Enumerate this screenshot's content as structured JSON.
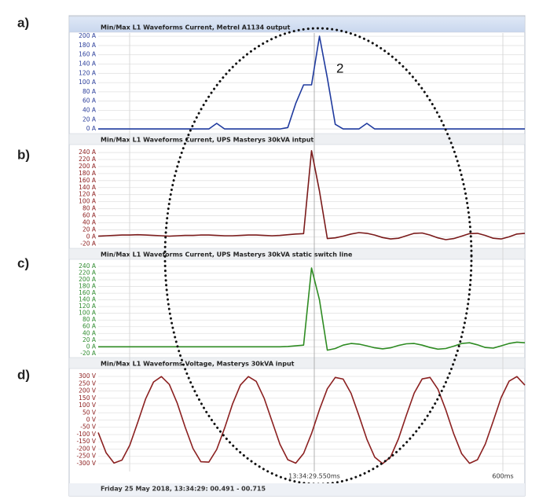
{
  "chart_data": [
    {
      "type": "line",
      "panel_label": "a)",
      "title": "Min/Max L1 Waveforms Current, Metrel A1134 output",
      "color": "#1f3a9e",
      "tick_color": "#2a3d9a",
      "annotations": [
        "2"
      ],
      "values": [
        0,
        0,
        0,
        0,
        0,
        0,
        0,
        0,
        0,
        0,
        0,
        0,
        0,
        0,
        0,
        12,
        0,
        0,
        0,
        0,
        0,
        0,
        0,
        0,
        3,
        55,
        95,
        95,
        200,
        110,
        10,
        0,
        0,
        0,
        12,
        0,
        0,
        0,
        0,
        0,
        0,
        0,
        0,
        0,
        0,
        0,
        0,
        0,
        0,
        0,
        0,
        0,
        0,
        0,
        0
      ],
      "ylim": [
        -5,
        207
      ],
      "yticks": [
        {
          "value": 0,
          "label": "0 A"
        },
        {
          "value": 20,
          "label": "20 A"
        },
        {
          "value": 40,
          "label": "40 A"
        },
        {
          "value": 60,
          "label": "60 A"
        },
        {
          "value": 80,
          "label": "80 A"
        },
        {
          "value": 100,
          "label": "100 A"
        },
        {
          "value": 120,
          "label": "120 A"
        },
        {
          "value": 140,
          "label": "140 A"
        },
        {
          "value": 160,
          "label": "160 A"
        },
        {
          "value": 180,
          "label": "180 A"
        },
        {
          "value": 200,
          "label": "200 A"
        }
      ],
      "grid": true
    },
    {
      "type": "line",
      "panel_label": "b)",
      "title": "Min/Max L1 Waveforms Current, UPS Masterys 30kVA intput",
      "color": "#7a1a1a",
      "tick_color": "#8b1a1a",
      "values": [
        2,
        3,
        4,
        5,
        5,
        6,
        5,
        4,
        3,
        2,
        3,
        4,
        4,
        5,
        5,
        4,
        3,
        3,
        4,
        5,
        5,
        4,
        3,
        4,
        6,
        8,
        9,
        245,
        130,
        -5,
        -3,
        2,
        8,
        12,
        10,
        5,
        -2,
        -6,
        -4,
        3,
        10,
        11,
        5,
        -3,
        -8,
        -5,
        2,
        9,
        10,
        4,
        -4,
        -6,
        0,
        8,
        10
      ],
      "ylim": [
        -26,
        258
      ],
      "yticks": [
        {
          "value": -20,
          "label": "-20 A"
        },
        {
          "value": 0,
          "label": "0 A"
        },
        {
          "value": 20,
          "label": "20 A"
        },
        {
          "value": 40,
          "label": "40 A"
        },
        {
          "value": 60,
          "label": "60 A"
        },
        {
          "value": 80,
          "label": "80 A"
        },
        {
          "value": 100,
          "label": "100 A"
        },
        {
          "value": 120,
          "label": "120 A"
        },
        {
          "value": 140,
          "label": "140 A"
        },
        {
          "value": 160,
          "label": "160 A"
        },
        {
          "value": 180,
          "label": "180 A"
        },
        {
          "value": 200,
          "label": "200 A"
        },
        {
          "value": 220,
          "label": "220 A"
        },
        {
          "value": 240,
          "label": "240 A"
        }
      ],
      "grid": true
    },
    {
      "type": "line",
      "panel_label": "c)",
      "title": "Min/Max L1 Waveforms Current, UPS Masterys 30kVA static switch line",
      "color": "#2e8b22",
      "tick_color": "#2e8b2e",
      "values": [
        0,
        0,
        0,
        0,
        0,
        0,
        0,
        0,
        0,
        0,
        0,
        0,
        0,
        0,
        0,
        0,
        0,
        0,
        0,
        0,
        0,
        0,
        0,
        0,
        1,
        3,
        5,
        235,
        140,
        -10,
        -5,
        5,
        10,
        8,
        3,
        -3,
        -6,
        -3,
        4,
        9,
        10,
        5,
        -2,
        -7,
        -5,
        2,
        10,
        12,
        6,
        -2,
        -4,
        3,
        10,
        14,
        12
      ],
      "ylim": [
        -25,
        254
      ],
      "yticks": [
        {
          "value": -20,
          "label": "-20 A"
        },
        {
          "value": 0,
          "label": "0 A"
        },
        {
          "value": 20,
          "label": "20 A"
        },
        {
          "value": 40,
          "label": "40 A"
        },
        {
          "value": 60,
          "label": "60 A"
        },
        {
          "value": 80,
          "label": "80 A"
        },
        {
          "value": 100,
          "label": "100 A"
        },
        {
          "value": 120,
          "label": "120 A"
        },
        {
          "value": 140,
          "label": "140 A"
        },
        {
          "value": 160,
          "label": "160 A"
        },
        {
          "value": 180,
          "label": "180 A"
        },
        {
          "value": 200,
          "label": "200 A"
        },
        {
          "value": 220,
          "label": "220 A"
        },
        {
          "value": 240,
          "label": "240 A"
        }
      ],
      "grid": true
    },
    {
      "type": "line",
      "panel_label": "d)",
      "title": "Min/Max L1 Waveforms Voltage, Masterys 30kVA input",
      "color": "#8b2020",
      "tick_color": "#8b1a1a",
      "values": [
        -86,
        -226,
        -296,
        -276,
        -173,
        -16,
        145,
        262,
        299,
        245,
        116,
        -48,
        -197,
        -287,
        -290,
        -203,
        -55,
        110,
        241,
        299,
        266,
        150,
        -8,
        -167,
        -273,
        -297,
        -230,
        -93,
        72,
        215,
        293,
        282,
        184,
        31,
        -132,
        -255,
        -300,
        -254,
        -130,
        33,
        186,
        283,
        293,
        212,
        70,
        -95,
        -232,
        -298,
        -273,
        -165,
        -7,
        154,
        267,
        299,
        240
      ],
      "ylim": [
        -338,
        338
      ],
      "yticks": [
        {
          "value": -300,
          "label": "-300 V"
        },
        {
          "value": -250,
          "label": "-250 V"
        },
        {
          "value": -200,
          "label": "-200 V"
        },
        {
          "value": -150,
          "label": "-150 V"
        },
        {
          "value": -100,
          "label": "-100 V"
        },
        {
          "value": -50,
          "label": "-50 V"
        },
        {
          "value": 0,
          "label": "0 V"
        },
        {
          "value": 50,
          "label": "50 V"
        },
        {
          "value": 100,
          "label": "100 V"
        },
        {
          "value": 150,
          "label": "150 V"
        },
        {
          "value": 200,
          "label": "200 V"
        },
        {
          "value": 250,
          "label": "250 V"
        },
        {
          "value": 300,
          "label": "300 V"
        }
      ],
      "grid": true
    }
  ],
  "footer": {
    "cursor_time": "13:34:29.550ms",
    "scale": "600ms",
    "date": "Friday 25 May 2018, 13:34:29: 00.491 - 00.715"
  }
}
